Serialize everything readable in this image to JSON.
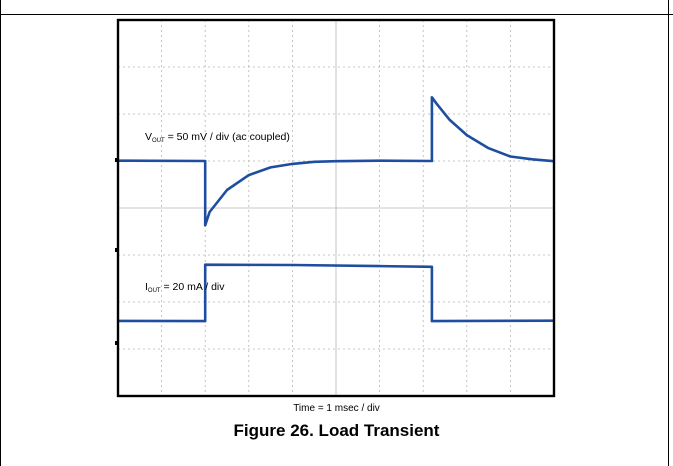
{
  "chart_data": {
    "type": "line",
    "title": "",
    "grid": true,
    "xlabel": "Time = 1 msec / div",
    "x_divisions": 10,
    "y_divisions": 8,
    "trace_color": "#1f4ea1",
    "series": [
      {
        "name": "VOUT",
        "label_main": "V",
        "label_sub": "OUT",
        "label_rest": " = 50 mV / div (ac coupled)",
        "unit_per_div": "50 mV",
        "points": [
          [
            0,
            0
          ],
          [
            2.0,
            0
          ],
          [
            2.0,
            -2.0
          ],
          [
            2.1,
            -1.6
          ],
          [
            2.5,
            -0.9
          ],
          [
            3.0,
            -0.45
          ],
          [
            3.5,
            -0.2
          ],
          [
            4.0,
            -0.08
          ],
          [
            4.5,
            -0.03
          ],
          [
            5.0,
            0
          ],
          [
            6.0,
            0
          ],
          [
            7.2,
            0
          ],
          [
            7.2,
            2.0
          ],
          [
            7.3,
            1.8
          ],
          [
            7.6,
            1.3
          ],
          [
            8.0,
            0.8
          ],
          [
            8.5,
            0.4
          ],
          [
            9.0,
            0.15
          ],
          [
            9.5,
            0.05
          ],
          [
            10.0,
            0
          ]
        ]
      },
      {
        "name": "IOUT",
        "label_main": "I",
        "label_sub": "OUT",
        "label_rest": " = 20 mA / div",
        "unit_per_div": "20 mA",
        "points": [
          [
            0,
            0
          ],
          [
            2.0,
            0
          ],
          [
            2.0,
            2.0
          ],
          [
            4.0,
            2.0
          ],
          [
            6.0,
            1.97
          ],
          [
            7.2,
            1.93
          ],
          [
            7.2,
            0
          ],
          [
            10.0,
            0
          ]
        ]
      }
    ]
  },
  "caption": {
    "time": "Time = 1 msec / div",
    "figure": "Figure 26.  Load Transient"
  }
}
